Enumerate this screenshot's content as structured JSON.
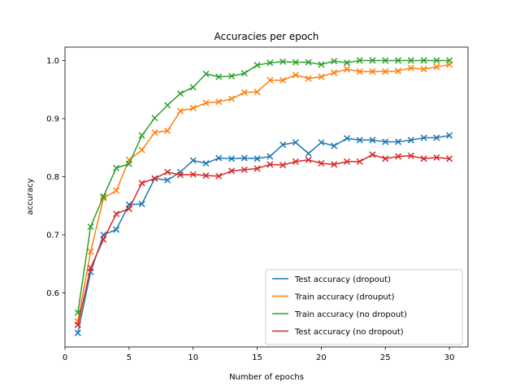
{
  "chart_data": {
    "type": "line",
    "title": "Accuracies per epoch",
    "xlabel": "Number of epochs",
    "ylabel": "accuracy",
    "xlim": [
      0,
      31.45
    ],
    "ylim": [
      0.507,
      1.023
    ],
    "xticks": [
      0,
      5,
      10,
      15,
      20,
      25,
      30
    ],
    "yticks": [
      0.6,
      0.7,
      0.8,
      0.9,
      1.0
    ],
    "ytick_labels": [
      "0.6",
      "0.7",
      "0.8",
      "0.9",
      "1.0"
    ],
    "grid": false,
    "legend_position": "lower-right",
    "marker": "x",
    "x": [
      1,
      2,
      3,
      4,
      5,
      6,
      7,
      8,
      9,
      10,
      11,
      12,
      13,
      14,
      15,
      16,
      17,
      18,
      19,
      20,
      21,
      22,
      23,
      24,
      25,
      26,
      27,
      28,
      29,
      30
    ],
    "series": [
      {
        "name": "Test accuracy (dropout)",
        "color": "#1f77b4",
        "values": [
          0.531,
          0.636,
          0.7,
          0.709,
          0.752,
          0.753,
          0.797,
          0.794,
          0.808,
          0.828,
          0.823,
          0.832,
          0.831,
          0.832,
          0.831,
          0.835,
          0.855,
          0.859,
          0.84,
          0.859,
          0.853,
          0.866,
          0.863,
          0.863,
          0.86,
          0.86,
          0.863,
          0.867,
          0.867,
          0.871
        ]
      },
      {
        "name": "Train accuracy (drouput)",
        "color": "#ff7f0e",
        "values": [
          0.551,
          0.671,
          0.763,
          0.776,
          0.829,
          0.846,
          0.876,
          0.879,
          0.913,
          0.918,
          0.927,
          0.929,
          0.934,
          0.945,
          0.946,
          0.966,
          0.966,
          0.975,
          0.969,
          0.972,
          0.979,
          0.985,
          0.981,
          0.981,
          0.981,
          0.982,
          0.987,
          0.985,
          0.989,
          0.993
        ]
      },
      {
        "name": "Train accuracy (no dropout)",
        "color": "#2ca02c",
        "values": [
          0.566,
          0.714,
          0.766,
          0.815,
          0.822,
          0.871,
          0.901,
          0.923,
          0.943,
          0.954,
          0.977,
          0.972,
          0.973,
          0.978,
          0.992,
          0.996,
          0.998,
          0.997,
          0.997,
          0.993,
          0.999,
          0.996,
          1.0,
          1.0,
          1.0,
          1.0,
          1.0,
          1.0,
          1.0,
          1.0
        ]
      },
      {
        "name": "Test accuracy (no dropout)",
        "color": "#d62728",
        "values": [
          0.545,
          0.643,
          0.692,
          0.736,
          0.745,
          0.789,
          0.797,
          0.808,
          0.803,
          0.804,
          0.802,
          0.801,
          0.81,
          0.812,
          0.814,
          0.821,
          0.82,
          0.826,
          0.829,
          0.823,
          0.821,
          0.826,
          0.826,
          0.838,
          0.831,
          0.835,
          0.836,
          0.831,
          0.833,
          0.831
        ]
      }
    ]
  }
}
